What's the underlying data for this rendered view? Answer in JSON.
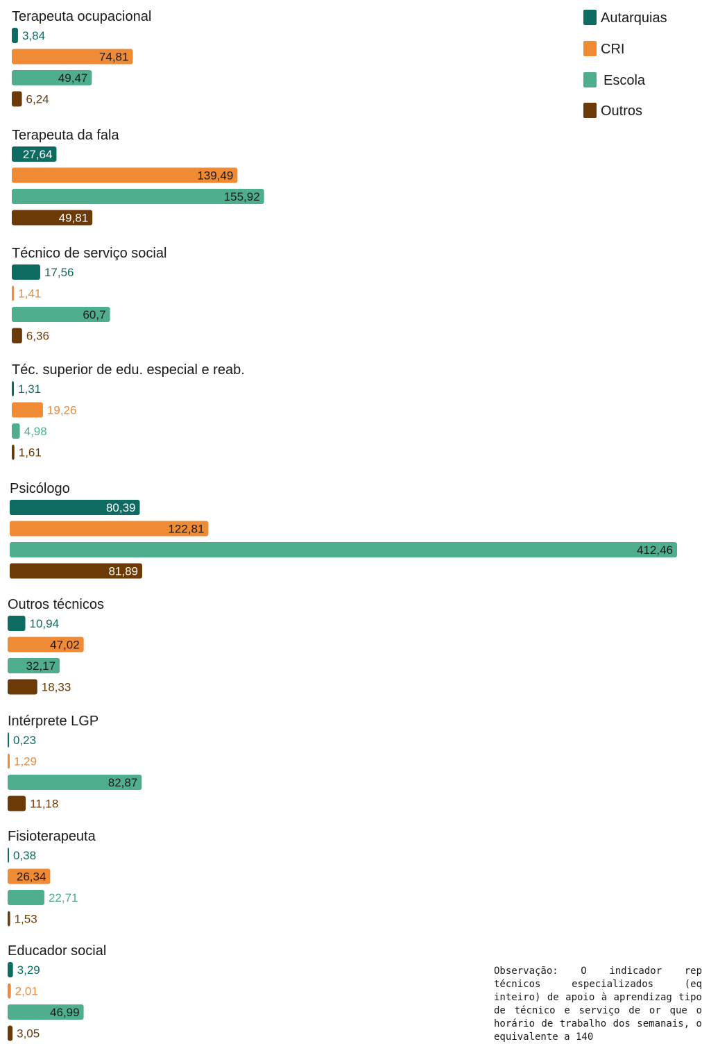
{
  "chart_data": {
    "type": "bar",
    "orientation": "horizontal",
    "series": [
      {
        "name": "Autarquias",
        "color": "#0e6b62"
      },
      {
        "name": "CRI",
        "color": "#ef8a35"
      },
      {
        "name": "Escola",
        "color": "#4fae8e"
      },
      {
        "name": "Outros",
        "color": "#6b3a06"
      }
    ],
    "groups": [
      {
        "label": "Terapeuta ocupacional",
        "values": [
          3.84,
          74.81,
          49.47,
          6.24
        ],
        "labels": [
          "3,84",
          "74,81",
          "49,47",
          "6,24"
        ]
      },
      {
        "label": "Terapeuta da fala",
        "values": [
          27.64,
          139.49,
          155.92,
          49.81
        ],
        "labels": [
          "27,64",
          "139,49",
          "155,92",
          "49,81"
        ]
      },
      {
        "label": "Técnico de serviço social",
        "values": [
          17.56,
          1.41,
          60.7,
          6.36
        ],
        "labels": [
          "17,56",
          "1,41",
          "60,7",
          "6,36"
        ]
      },
      {
        "label": "Téc. superior de edu. especial e reab.",
        "values": [
          1.31,
          19.26,
          4.98,
          1.61
        ],
        "labels": [
          "1,31",
          "19,26",
          "4,98",
          "1,61"
        ]
      },
      {
        "label": "Psicólogo",
        "values": [
          80.39,
          122.81,
          412.46,
          81.89
        ],
        "labels": [
          "80,39",
          "122,81",
          "412,46",
          "81,89"
        ]
      },
      {
        "label": "Outros técnicos",
        "values": [
          10.94,
          47.02,
          32.17,
          18.33
        ],
        "labels": [
          "10,94",
          "47,02",
          "32,17",
          "18,33"
        ]
      },
      {
        "label": "Intérprete LGP",
        "values": [
          0.23,
          1.29,
          82.87,
          11.18
        ],
        "labels": [
          "0,23",
          "1,29",
          "82,87",
          "11,18"
        ]
      },
      {
        "label": "Fisioterapeuta",
        "values": [
          0.38,
          26.34,
          22.71,
          1.53
        ],
        "labels": [
          "0,38",
          "26,34",
          "22,71",
          "1,53"
        ]
      },
      {
        "label": "Educador social",
        "values": [
          3.29,
          2.01,
          46.99,
          3.05
        ],
        "labels": [
          "3,29",
          "2,01",
          "46,99",
          "3,05"
        ]
      }
    ],
    "legend_position": "top-right"
  },
  "note": "Observação: O indicador rep técnicos especializados (eq inteiro) de apoio à aprendizag tipo de técnico e serviço de or que o horário de trabalho dos semanais, o equivalente a 140"
}
